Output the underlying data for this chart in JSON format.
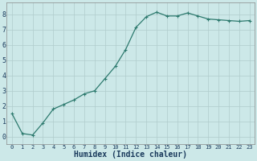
{
  "x": [
    0,
    1,
    2,
    3,
    4,
    5,
    6,
    7,
    8,
    9,
    10,
    11,
    12,
    13,
    14,
    15,
    16,
    17,
    18,
    19,
    20,
    21,
    22,
    23
  ],
  "y": [
    1.5,
    0.2,
    0.1,
    0.9,
    1.8,
    2.1,
    2.4,
    2.8,
    3.0,
    3.8,
    4.6,
    5.7,
    7.15,
    7.85,
    8.15,
    7.9,
    7.9,
    8.1,
    7.9,
    7.7,
    7.65,
    7.6,
    7.55,
    7.6
  ],
  "line_color": "#2d7a6e",
  "marker": "+",
  "marker_color": "#2d7a6e",
  "bg_color": "#cce8e8",
  "grid_color": "#b0cccc",
  "xlabel": "Humidex (Indice chaleur)",
  "xlabel_fontsize": 7,
  "xlim": [
    -0.5,
    23.5
  ],
  "ylim": [
    -0.5,
    8.8
  ],
  "yticks": [
    0,
    1,
    2,
    3,
    4,
    5,
    6,
    7,
    8
  ],
  "xticks": [
    0,
    1,
    2,
    3,
    4,
    5,
    6,
    7,
    8,
    9,
    10,
    11,
    12,
    13,
    14,
    15,
    16,
    17,
    18,
    19,
    20,
    21,
    22,
    23
  ],
  "xtick_fontsize": 5,
  "ytick_fontsize": 6,
  "xlabel_color": "#1a3a5c",
  "tick_color": "#1a3a5c"
}
